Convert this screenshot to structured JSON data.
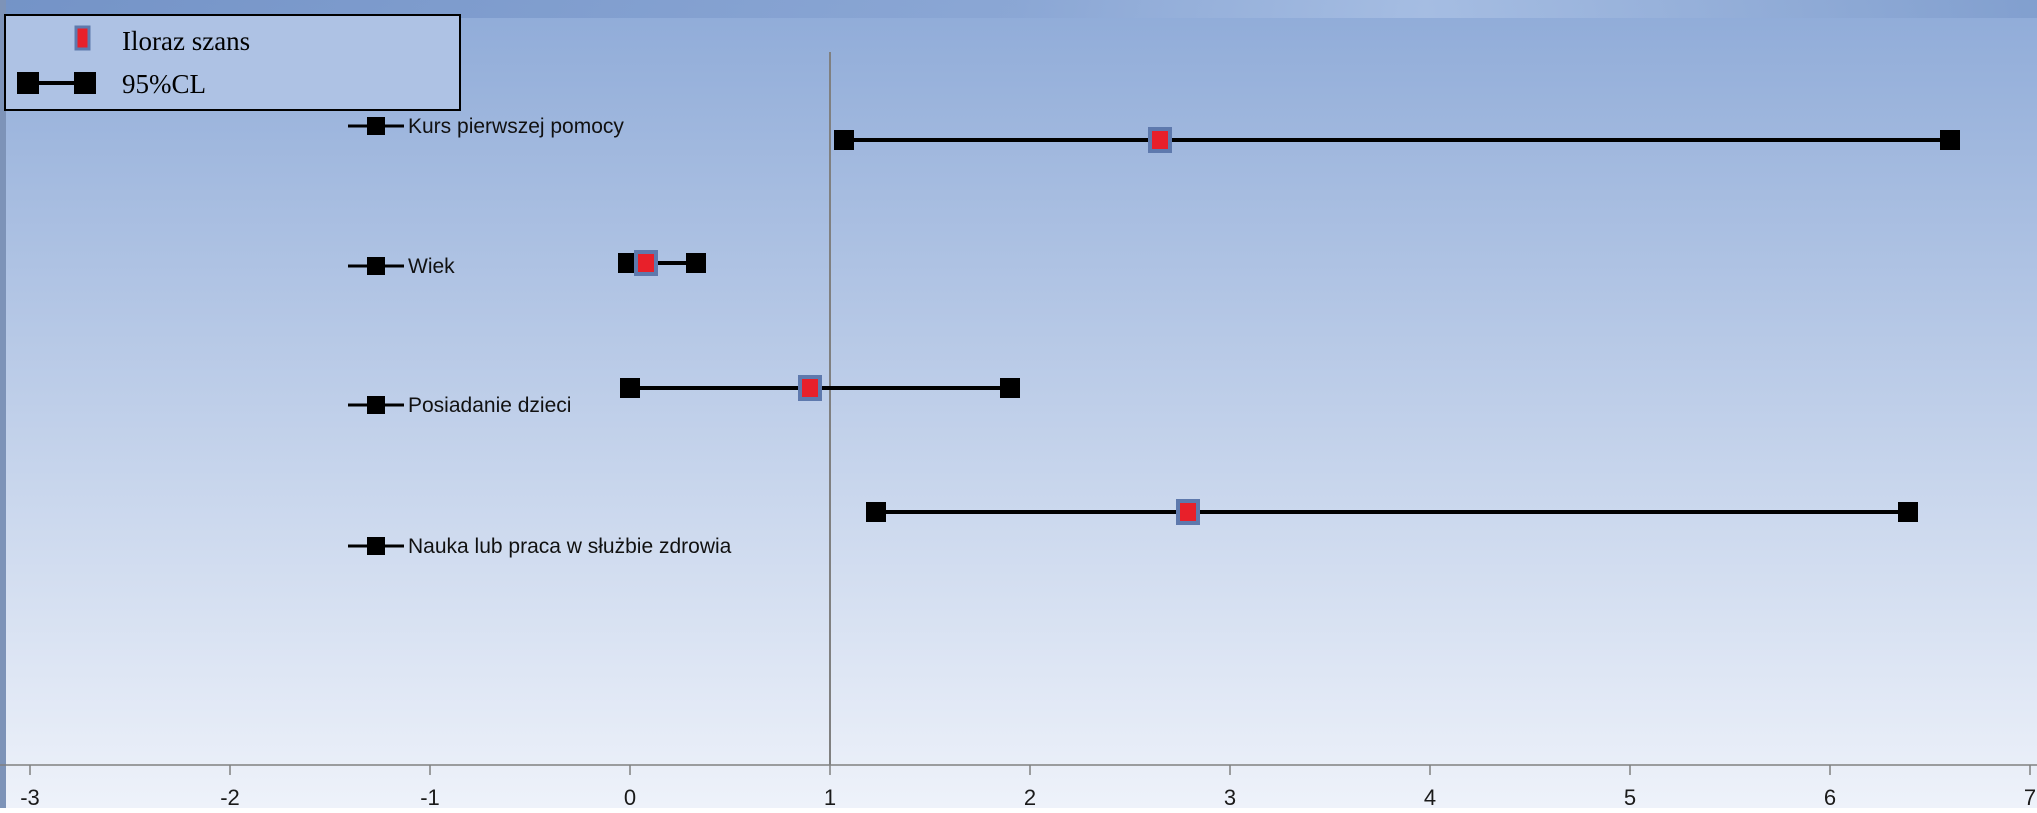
{
  "chart_data": {
    "type": "forest",
    "title": "",
    "xlabel": "",
    "ylabel": "",
    "xlim": [
      -3,
      7
    ],
    "x_ticks": [
      -3,
      -2,
      -1,
      0,
      1,
      2,
      3,
      4,
      5,
      6,
      7
    ],
    "reference_line_x": 1,
    "grid": false,
    "legend": {
      "position": "top-left",
      "entries": [
        {
          "label": "Iloraz szans",
          "marker": "red-square"
        },
        {
          "label": "95%CL",
          "marker": "black-line-squares"
        }
      ]
    },
    "series": [
      {
        "name": "Kurs pierwszej pomocy",
        "odds_ratio": 2.65,
        "ci_low": 1.07,
        "ci_high": 6.6
      },
      {
        "name": "Wiek",
        "odds_ratio": 0.08,
        "ci_low": -0.01,
        "ci_high": 0.33
      },
      {
        "name": "Posiadanie dzieci",
        "odds_ratio": 0.9,
        "ci_low": 0.0,
        "ci_high": 1.9
      },
      {
        "name": "Nauka lub praca w służbie zdrowia",
        "odds_ratio": 2.79,
        "ci_low": 1.23,
        "ci_high": 6.39
      }
    ],
    "colors": {
      "background_top": "#8fabd8",
      "background_bottom": "#eef2fa",
      "point_fill": "#e8202a",
      "point_border": "#5e79ad",
      "ci_line": "#000000",
      "reference_line": "#808080"
    }
  }
}
